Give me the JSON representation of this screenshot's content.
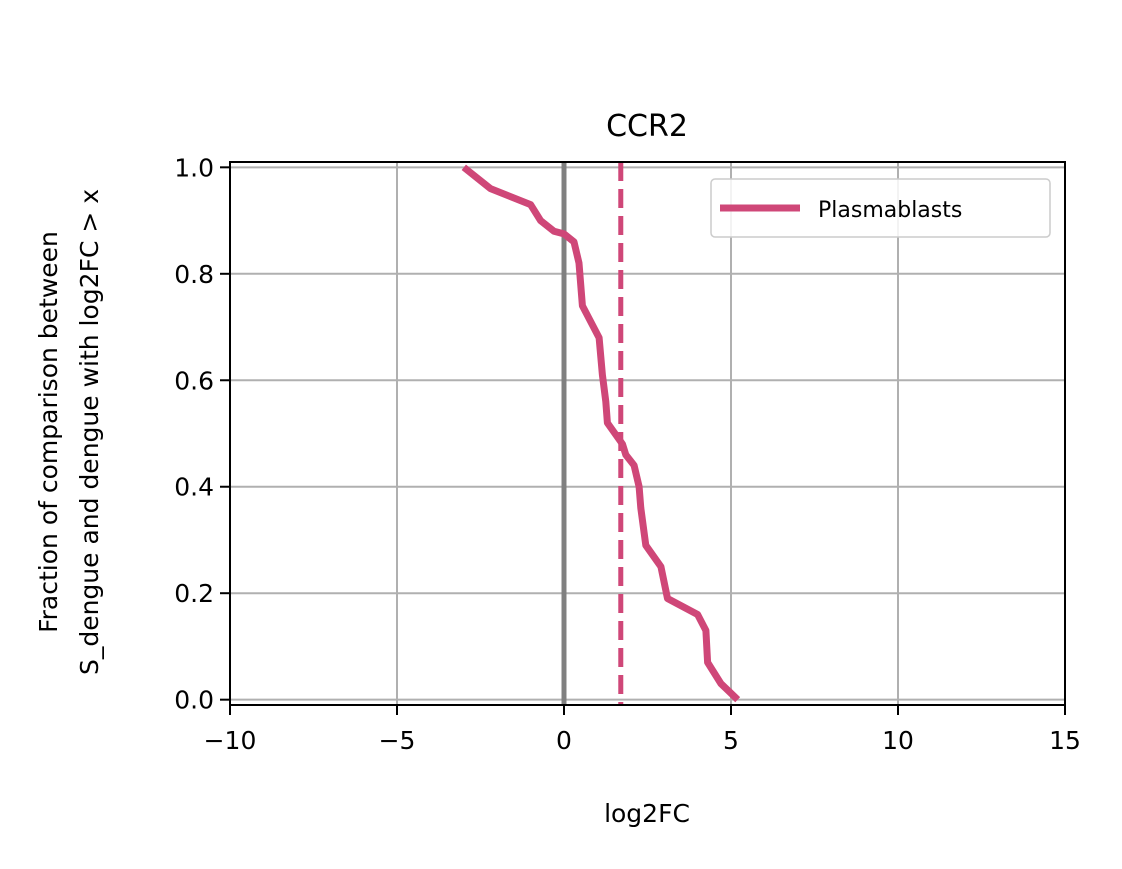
{
  "chart_data": {
    "type": "line",
    "title": "CCR2",
    "xlabel": "log2FC",
    "ylabel_lines": [
      "Fraction of comparison between",
      "S_dengue and dengue with log2FC > x"
    ],
    "xlim": [
      -10,
      15
    ],
    "ylim": [
      -0.01,
      1.01
    ],
    "x_ticks": [
      -10,
      -5,
      0,
      5,
      10,
      15
    ],
    "x_tick_labels": [
      "−10",
      "−5",
      "0",
      "5",
      "10",
      "15"
    ],
    "y_ticks": [
      0.0,
      0.2,
      0.4,
      0.6,
      0.8,
      1.0
    ],
    "y_tick_labels": [
      "0.0",
      "0.2",
      "0.4",
      "0.6",
      "0.8",
      "1.0"
    ],
    "grid": true,
    "legend_position": "top-right",
    "reference_lines": [
      {
        "x": 0,
        "style": "solid",
        "color": "#808080"
      },
      {
        "x": 1.7,
        "style": "dashed",
        "color": "#cf4778"
      }
    ],
    "series": [
      {
        "name": "Plasmablasts",
        "color": "#cf4778",
        "x": [
          -3.0,
          -2.2,
          -1.0,
          -0.7,
          -0.3,
          0.0,
          0.3,
          0.45,
          0.55,
          1.05,
          1.15,
          1.25,
          1.3,
          1.75,
          1.85,
          2.1,
          2.25,
          2.3,
          2.45,
          2.9,
          3.1,
          4.0,
          4.25,
          4.3,
          4.7,
          5.2
        ],
        "y": [
          1.0,
          0.96,
          0.93,
          0.9,
          0.88,
          0.875,
          0.86,
          0.82,
          0.74,
          0.68,
          0.61,
          0.56,
          0.52,
          0.48,
          0.46,
          0.44,
          0.4,
          0.36,
          0.29,
          0.25,
          0.19,
          0.16,
          0.13,
          0.07,
          0.03,
          0.0
        ]
      }
    ]
  }
}
